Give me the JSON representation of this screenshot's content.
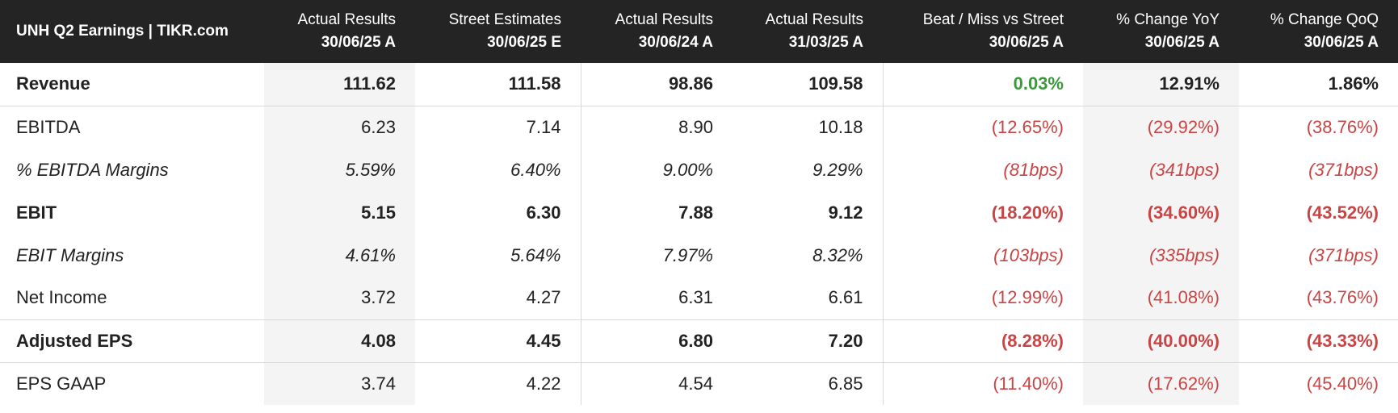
{
  "chart_data": {
    "type": "table",
    "title": "UNH Q2 Earnings | TIKR.com",
    "columns": [
      {
        "name": "Actual Results",
        "date": "30/06/25 A"
      },
      {
        "name": "Street Estimates",
        "date": "30/06/25 E"
      },
      {
        "name": "Actual Results",
        "date": "30/06/24 A"
      },
      {
        "name": "Actual Results",
        "date": "31/03/25 A"
      },
      {
        "name": "Beat / Miss vs Street",
        "date": "30/06/25 A"
      },
      {
        "name": "% Change YoY",
        "date": "30/06/25 A"
      },
      {
        "name": "% Change QoQ",
        "date": "30/06/25 A"
      }
    ],
    "rows": [
      {
        "label": "Revenue",
        "values": [
          "111.62",
          "111.58",
          "98.86",
          "109.58",
          "0.03%",
          "12.91%",
          "1.86%"
        ],
        "tones": [
          "neu",
          "neu",
          "neu",
          "neu",
          "pos",
          "neu",
          "neu"
        ]
      },
      {
        "label": "EBITDA",
        "values": [
          "6.23",
          "7.14",
          "8.90",
          "10.18",
          "(12.65%)",
          "(29.92%)",
          "(38.76%)"
        ],
        "tones": [
          "neu",
          "neu",
          "neu",
          "neu",
          "neg",
          "neg",
          "neg"
        ]
      },
      {
        "label": "% EBITDA Margins",
        "values": [
          "5.59%",
          "6.40%",
          "9.00%",
          "9.29%",
          "(81bps)",
          "(341bps)",
          "(371bps)"
        ],
        "tones": [
          "neu",
          "neu",
          "neu",
          "neu",
          "neg",
          "neg",
          "neg"
        ]
      },
      {
        "label": "EBIT",
        "values": [
          "5.15",
          "6.30",
          "7.88",
          "9.12",
          "(18.20%)",
          "(34.60%)",
          "(43.52%)"
        ],
        "tones": [
          "neu",
          "neu",
          "neu",
          "neu",
          "neg",
          "neg",
          "neg"
        ]
      },
      {
        "label": "EBIT Margins",
        "values": [
          "4.61%",
          "5.64%",
          "7.97%",
          "8.32%",
          "(103bps)",
          "(335bps)",
          "(371bps)"
        ],
        "tones": [
          "neu",
          "neu",
          "neu",
          "neu",
          "neg",
          "neg",
          "neg"
        ]
      },
      {
        "label": "Net Income",
        "values": [
          "3.72",
          "4.27",
          "6.31",
          "6.61",
          "(12.99%)",
          "(41.08%)",
          "(43.76%)"
        ],
        "tones": [
          "neu",
          "neu",
          "neu",
          "neu",
          "neg",
          "neg",
          "neg"
        ]
      },
      {
        "label": "Adjusted EPS",
        "values": [
          "4.08",
          "4.45",
          "6.80",
          "7.20",
          "(8.28%)",
          "(40.00%)",
          "(43.33%)"
        ],
        "tones": [
          "neu",
          "neu",
          "neu",
          "neu",
          "neg",
          "neg",
          "neg"
        ]
      },
      {
        "label": "EPS GAAP",
        "values": [
          "3.74",
          "4.22",
          "4.54",
          "6.85",
          "(11.40%)",
          "(17.62%)",
          "(45.40%)"
        ],
        "tones": [
          "neu",
          "neu",
          "neu",
          "neu",
          "neg",
          "neg",
          "neg"
        ]
      }
    ]
  },
  "colors": {
    "header_bg": "#242424",
    "positive": "#3a9a3a",
    "negative": "#c94444",
    "shade": "#f4f4f4"
  }
}
